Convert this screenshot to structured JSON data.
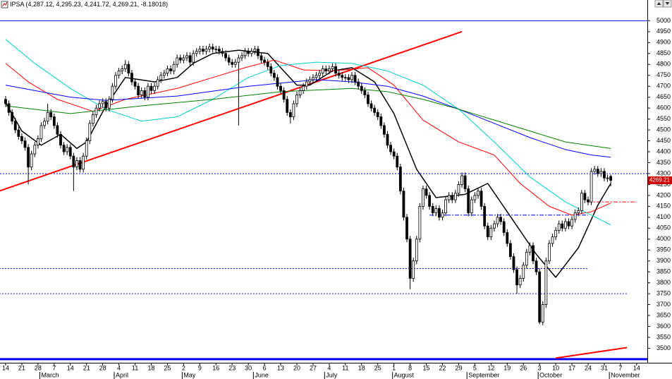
{
  "chart_data": {
    "type": "candlestick",
    "title": "IPSA (4,287.12, 4,295.23, 4,241.72, 4,269.21, -8.18018)",
    "xlim": [
      -1.74,
      198.3
    ],
    "ylim": [
      3440,
      5095
    ],
    "yticks": [
      3500,
      3550,
      3600,
      3650,
      3700,
      3750,
      3800,
      3850,
      3900,
      3950,
      4000,
      4050,
      4100,
      4150,
      4200,
      4250,
      4300,
      4350,
      4400,
      4450,
      4500,
      4550,
      4600,
      4650,
      4700,
      4750,
      4800,
      4850,
      4900,
      4950,
      5000
    ],
    "xticks": [
      {
        "value": 0,
        "label": "14"
      },
      {
        "value": 5,
        "label": "21"
      },
      {
        "value": 10,
        "label": "28"
      },
      {
        "value": 15,
        "label": "7"
      },
      {
        "value": 20,
        "label": "14"
      },
      {
        "value": 25,
        "label": "21"
      },
      {
        "value": 30,
        "label": "28"
      },
      {
        "value": 35,
        "label": "4"
      },
      {
        "value": 40,
        "label": "11"
      },
      {
        "value": 45,
        "label": "18"
      },
      {
        "value": 50,
        "label": "25"
      },
      {
        "value": 55,
        "label": "2"
      },
      {
        "value": 60,
        "label": "9"
      },
      {
        "value": 65,
        "label": "16"
      },
      {
        "value": 70,
        "label": "23"
      },
      {
        "value": 75,
        "label": "30"
      },
      {
        "value": 80,
        "label": "6"
      },
      {
        "value": 85,
        "label": "13"
      },
      {
        "value": 90,
        "label": "20"
      },
      {
        "value": 95,
        "label": "27"
      },
      {
        "value": 100,
        "label": "4"
      },
      {
        "value": 105,
        "label": "11"
      },
      {
        "value": 110,
        "label": "18"
      },
      {
        "value": 115,
        "label": "25"
      },
      {
        "value": 120,
        "label": "1"
      },
      {
        "value": 125,
        "label": "8"
      },
      {
        "value": 130,
        "label": "15"
      },
      {
        "value": 135,
        "label": "22"
      },
      {
        "value": 140,
        "label": "29"
      },
      {
        "value": 145,
        "label": "5"
      },
      {
        "value": 150,
        "label": "12"
      },
      {
        "value": 155,
        "label": "19"
      },
      {
        "value": 160,
        "label": "26"
      },
      {
        "value": 165,
        "label": "3"
      },
      {
        "value": 170,
        "label": "10"
      },
      {
        "value": 175,
        "label": "17"
      },
      {
        "value": 180,
        "label": "24"
      },
      {
        "value": 185,
        "label": "31"
      },
      {
        "value": 190,
        "label": "7"
      },
      {
        "value": 195,
        "label": "14"
      }
    ],
    "months": [
      {
        "value": 11,
        "label": "March"
      },
      {
        "value": 34,
        "label": "April"
      },
      {
        "value": 55,
        "label": "May"
      },
      {
        "value": 77,
        "label": "June"
      },
      {
        "value": 99,
        "label": "July"
      },
      {
        "value": 120,
        "label": "August"
      },
      {
        "value": 143,
        "label": "September"
      },
      {
        "value": 165,
        "label": "October"
      },
      {
        "value": 187,
        "label": "November"
      }
    ],
    "up_color": "#ffffff",
    "down_color": "#000000",
    "open": [
      4640,
      4620,
      4580,
      4540,
      4500,
      4470,
      4450,
      4420,
      4330,
      4390,
      4430,
      4460,
      4520,
      4540,
      4580,
      4560,
      4520,
      4480,
      4430,
      4400,
      4420,
      4380,
      4330,
      4360,
      4320,
      4380,
      4450,
      4530,
      4570,
      4600,
      4620,
      4630,
      4600,
      4640,
      4700,
      4750,
      4770,
      4780,
      4800,
      4760,
      4720,
      4700,
      4660,
      4680,
      4650,
      4700,
      4680,
      4700,
      4730,
      4750,
      4760,
      4780,
      4770,
      4800,
      4830,
      4820,
      4830,
      4840,
      4810,
      4850,
      4860,
      4870,
      4860,
      4870,
      4880,
      4870,
      4870,
      4860,
      4850,
      4830,
      4810,
      4800,
      4810,
      4830,
      4840,
      4860,
      4850,
      4860,
      4870,
      4840,
      4820,
      4810,
      4790,
      4760,
      4740,
      4700,
      4680,
      4640,
      4580,
      4560,
      4620,
      4660,
      4680,
      4700,
      4720,
      4730,
      4740,
      4750,
      4760,
      4780,
      4770,
      4780,
      4790,
      4760,
      4750,
      4740,
      4740,
      4730,
      4750,
      4720,
      4700,
      4680,
      4660,
      4620,
      4600,
      4580,
      4560,
      4520,
      4480,
      4430,
      4400,
      4380,
      4330,
      4220,
      4100,
      4000,
      3820,
      3900,
      4000,
      4150,
      4230,
      4200,
      4150,
      4120,
      4140,
      4100,
      4120,
      4180,
      4200,
      4180,
      4210,
      4250,
      4290,
      4230,
      4120,
      4180,
      4200,
      4220,
      4150,
      4060,
      4010,
      4050,
      4070,
      4100,
      4080,
      4030,
      3980,
      3920,
      3860,
      3790,
      3820,
      3880,
      3940,
      3970,
      3900,
      3850,
      3620,
      3700,
      3900,
      3980,
      4010,
      4040,
      4070,
      4050,
      4080,
      4060,
      4090,
      4120,
      4130,
      4210,
      4180,
      4170,
      4310,
      4320,
      4300,
      4310,
      4280,
      4287.12
    ],
    "high": [
      4655,
      4635,
      4595,
      4555,
      4515,
      4485,
      4465,
      4435,
      4405,
      4445,
      4475,
      4535,
      4555,
      4620,
      4595,
      4575,
      4535,
      4495,
      4445,
      4435,
      4435,
      4395,
      4375,
      4375,
      4395,
      4465,
      4545,
      4585,
      4615,
      4635,
      4645,
      4645,
      4655,
      4715,
      4765,
      4785,
      4795,
      4820,
      4815,
      4775,
      4735,
      4715,
      4695,
      4695,
      4715,
      4715,
      4715,
      4745,
      4765,
      4775,
      4795,
      4795,
      4815,
      4845,
      4845,
      4845,
      4855,
      4855,
      4865,
      4875,
      4885,
      4885,
      4885,
      4895,
      4895,
      4885,
      4885,
      4875,
      4865,
      4845,
      4825,
      4825,
      4845,
      4855,
      4875,
      4875,
      4875,
      4885,
      4885,
      4855,
      4835,
      4825,
      4805,
      4775,
      4755,
      4715,
      4695,
      4655,
      4595,
      4635,
      4675,
      4695,
      4715,
      4735,
      4745,
      4755,
      4765,
      4775,
      4795,
      4795,
      4795,
      4805,
      4805,
      4775,
      4765,
      4755,
      4755,
      4765,
      4765,
      4735,
      4715,
      4695,
      4675,
      4635,
      4615,
      4595,
      4575,
      4535,
      4495,
      4445,
      4415,
      4395,
      4345,
      4235,
      4115,
      4015,
      3915,
      4015,
      4165,
      4245,
      4245,
      4215,
      4165,
      4155,
      4155,
      4135,
      4195,
      4215,
      4215,
      4225,
      4265,
      4305,
      4305,
      4245,
      4195,
      4215,
      4235,
      4235,
      4165,
      4075,
      4065,
      4085,
      4115,
      4115,
      4095,
      4045,
      3995,
      3935,
      3875,
      3835,
      3895,
      3955,
      3985,
      3985,
      3915,
      3865,
      3715,
      3915,
      3995,
      4025,
      4055,
      4085,
      4085,
      4095,
      4095,
      4105,
      4135,
      4145,
      4225,
      4225,
      4195,
      4325,
      4335,
      4335,
      4325,
      4325,
      4295,
      4295.23
    ],
    "low": [
      4605,
      4565,
      4525,
      4485,
      4455,
      4435,
      4405,
      4250,
      4315,
      4375,
      4415,
      4445,
      4505,
      4525,
      4545,
      4505,
      4465,
      4415,
      4385,
      4385,
      4365,
      4220,
      4315,
      4305,
      4305,
      4365,
      4435,
      4515,
      4555,
      4585,
      4605,
      4585,
      4585,
      4625,
      4685,
      4735,
      4755,
      4765,
      4745,
      4705,
      4685,
      4645,
      4645,
      4635,
      4635,
      4665,
      4665,
      4685,
      4715,
      4735,
      4745,
      4755,
      4755,
      4785,
      4805,
      4805,
      4815,
      4795,
      4795,
      4835,
      4845,
      4845,
      4845,
      4855,
      4855,
      4855,
      4845,
      4835,
      4815,
      4795,
      4785,
      4785,
      4520,
      4815,
      4825,
      4835,
      4835,
      4845,
      4825,
      4805,
      4795,
      4775,
      4745,
      4725,
      4685,
      4665,
      4625,
      4565,
      4530,
      4545,
      4605,
      4645,
      4665,
      4685,
      4705,
      4715,
      4725,
      4735,
      4745,
      4755,
      4755,
      4765,
      4745,
      4735,
      4725,
      4725,
      4715,
      4715,
      4705,
      4685,
      4665,
      4645,
      4605,
      4585,
      4565,
      4545,
      4505,
      4465,
      4415,
      4385,
      4365,
      4315,
      4205,
      4085,
      3985,
      3770,
      3805,
      3885,
      3985,
      4135,
      4185,
      4135,
      4105,
      4105,
      4085,
      4085,
      4105,
      4165,
      4165,
      4165,
      4195,
      4235,
      4215,
      4105,
      4105,
      4165,
      4185,
      4135,
      4045,
      3995,
      3995,
      4035,
      4055,
      4065,
      4015,
      3965,
      3905,
      3845,
      3750,
      3775,
      3805,
      3865,
      3925,
      3885,
      3835,
      3610,
      3605,
      3685,
      3885,
      3965,
      3995,
      4025,
      4035,
      4035,
      4045,
      4045,
      4075,
      4105,
      4115,
      4165,
      4155,
      4155,
      4295,
      4285,
      4285,
      4265,
      4262,
      4241.72
    ],
    "close": [
      4620,
      4580,
      4540,
      4500,
      4470,
      4450,
      4420,
      4330,
      4390,
      4430,
      4460,
      4520,
      4540,
      4580,
      4560,
      4520,
      4480,
      4430,
      4400,
      4420,
      4380,
      4330,
      4360,
      4320,
      4380,
      4450,
      4530,
      4570,
      4600,
      4620,
      4630,
      4600,
      4640,
      4700,
      4750,
      4770,
      4780,
      4800,
      4760,
      4720,
      4700,
      4660,
      4680,
      4650,
      4700,
      4680,
      4700,
      4730,
      4750,
      4760,
      4780,
      4770,
      4800,
      4830,
      4820,
      4830,
      4840,
      4810,
      4850,
      4860,
      4870,
      4860,
      4870,
      4880,
      4870,
      4870,
      4860,
      4850,
      4830,
      4810,
      4800,
      4810,
      4830,
      4840,
      4860,
      4850,
      4860,
      4870,
      4840,
      4820,
      4810,
      4790,
      4760,
      4740,
      4700,
      4680,
      4640,
      4580,
      4560,
      4620,
      4660,
      4680,
      4700,
      4720,
      4730,
      4740,
      4750,
      4760,
      4780,
      4770,
      4780,
      4790,
      4760,
      4750,
      4740,
      4740,
      4730,
      4750,
      4720,
      4700,
      4680,
      4660,
      4620,
      4600,
      4580,
      4560,
      4520,
      4480,
      4430,
      4400,
      4380,
      4330,
      4220,
      4100,
      4000,
      3820,
      3900,
      4000,
      4150,
      4230,
      4200,
      4150,
      4120,
      4140,
      4100,
      4120,
      4180,
      4200,
      4180,
      4210,
      4250,
      4290,
      4230,
      4120,
      4180,
      4200,
      4220,
      4150,
      4060,
      4010,
      4050,
      4070,
      4100,
      4080,
      4030,
      3980,
      3920,
      3860,
      3790,
      3820,
      3880,
      3940,
      3970,
      3900,
      3850,
      3620,
      3700,
      3900,
      3980,
      4010,
      4040,
      4070,
      4050,
      4080,
      4060,
      4090,
      4120,
      4130,
      4210,
      4180,
      4170,
      4310,
      4320,
      4300,
      4310,
      4280,
      4277,
      4269.21
    ],
    "overlays": [
      {
        "color": "#000000",
        "width": 1.5,
        "x": [
          0,
          5,
          11,
          17,
          22,
          25,
          31,
          37,
          46,
          53,
          58,
          64,
          72,
          81,
          85,
          90,
          94,
          101,
          107,
          114,
          120,
          127,
          133,
          142,
          149,
          155,
          164,
          170,
          177,
          183,
          187
        ],
        "values": [
          4625,
          4495,
          4430,
          4480,
          4415,
          4445,
          4610,
          4740,
          4720,
          4740,
          4805,
          4850,
          4865,
          4850,
          4785,
          4705,
          4705,
          4770,
          4785,
          4720,
          4575,
          4320,
          4190,
          4205,
          4255,
          4125,
          3930,
          3825,
          3960,
          4155,
          4255
        ]
      },
      {
        "color": "#ff0000",
        "width": 1,
        "x": [
          0,
          7,
          16,
          27,
          37,
          53,
          64,
          74,
          83,
          92,
          101,
          112,
          120,
          129,
          140,
          151,
          159,
          168,
          175,
          181,
          187
        ],
        "values": [
          4805,
          4720,
          4640,
          4585,
          4640,
          4690,
          4740,
          4785,
          4820,
          4775,
          4770,
          4785,
          4705,
          4545,
          4445,
          4385,
          4255,
          4150,
          4110,
          4125,
          4165
        ]
      },
      {
        "color": "#00cccc",
        "width": 1,
        "x": [
          0,
          9,
          20,
          31,
          42,
          53,
          64,
          75,
          85,
          96,
          107,
          118,
          129,
          140,
          151,
          162,
          173,
          181,
          187
        ],
        "values": [
          4915,
          4805,
          4690,
          4595,
          4540,
          4560,
          4640,
          4740,
          4795,
          4810,
          4805,
          4770,
          4705,
          4595,
          4445,
          4285,
          4170,
          4110,
          4065
        ]
      },
      {
        "color": "#0000ff",
        "width": 1,
        "x": [
          0,
          20,
          31,
          53,
          75,
          96,
          107,
          118,
          129,
          140,
          151,
          162,
          173,
          181,
          187
        ],
        "values": [
          4705,
          4650,
          4635,
          4655,
          4700,
          4730,
          4720,
          4700,
          4655,
          4595,
          4530,
          4465,
          4410,
          4385,
          4375
        ]
      },
      {
        "color": "#008000",
        "width": 1,
        "x": [
          0,
          20,
          42,
          64,
          85,
          107,
          118,
          129,
          140,
          151,
          162,
          173,
          187
        ],
        "values": [
          4610,
          4575,
          4610,
          4640,
          4675,
          4690,
          4675,
          4640,
          4595,
          4545,
          4495,
          4445,
          4415
        ]
      }
    ],
    "trendlines": [
      {
        "color": "#ff0000",
        "width": 2,
        "x": [
          -2,
          141
        ],
        "values": [
          4220,
          4950
        ]
      },
      {
        "color": "#ff0000",
        "width": 2,
        "x": [
          170,
          192
        ],
        "values": [
          3455,
          3503
        ]
      }
    ],
    "hlines": [
      {
        "value": 5000,
        "color": "#0000ff",
        "dash": "solid",
        "width": 1
      },
      {
        "value": 4300,
        "color": "#0000ff",
        "dash": "dotted",
        "width": 1
      },
      {
        "value": 3865,
        "color": "#0000ff",
        "dash": "dotted",
        "width": 1,
        "x": [
          -2,
          180
        ]
      },
      {
        "value": 3750,
        "color": "#0000ff",
        "dash": "dotted",
        "width": 1,
        "x": [
          -2,
          192
        ]
      },
      {
        "value": 3450,
        "color": "#0000ff",
        "dash": "solid",
        "width": 3
      },
      {
        "value": 4170,
        "color": "#ff0000",
        "dash": "dashdot",
        "width": 1,
        "x": [
          180,
          195
        ]
      },
      {
        "value": 4110,
        "color": "#0000ff",
        "dash": "dashdot",
        "width": 1,
        "x": [
          131,
          180
        ]
      }
    ]
  }
}
